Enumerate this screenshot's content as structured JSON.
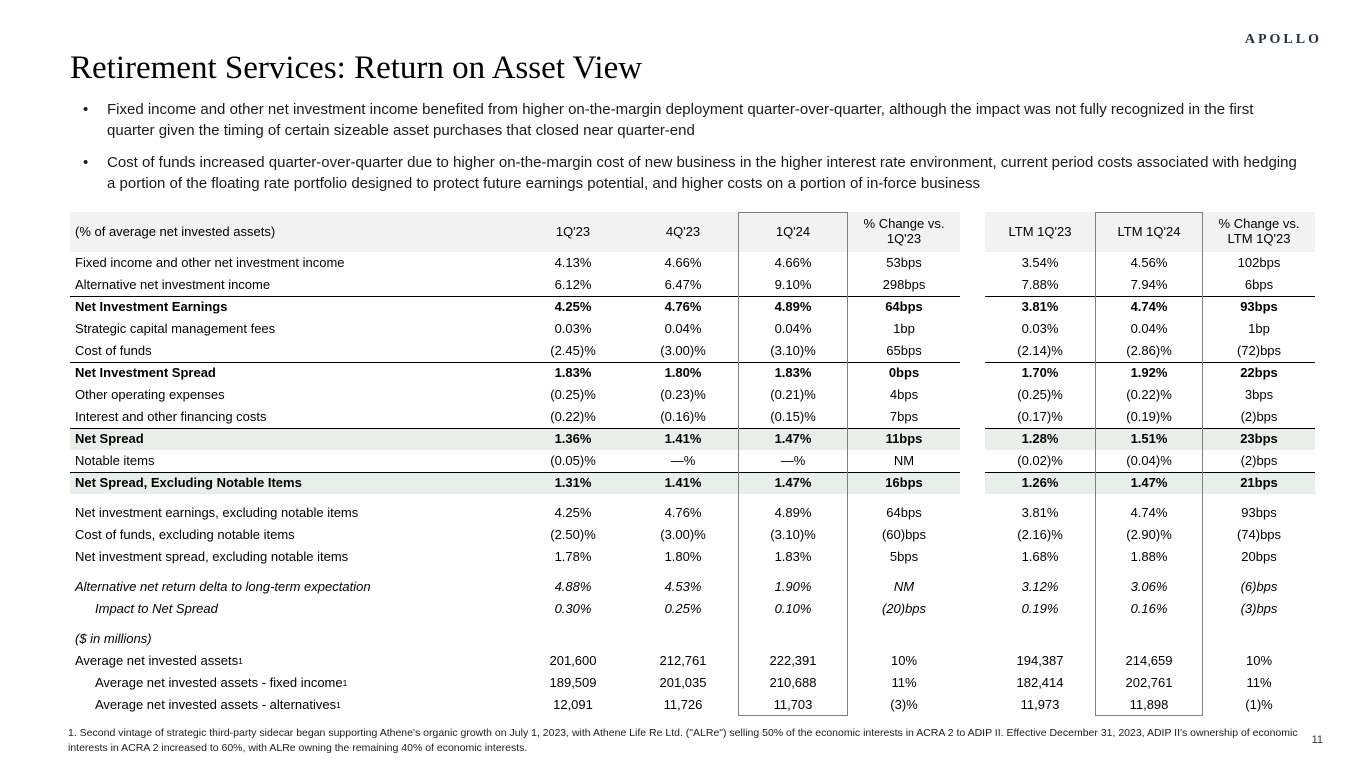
{
  "brand": {
    "logo": "APOLLO"
  },
  "page": {
    "title": "Retirement Services: Return on Asset View",
    "page_number": "11"
  },
  "bullets": [
    "Fixed income and other net investment income benefited from higher on-the-margin deployment quarter-over-quarter, although the impact was not fully recognized in the first quarter given the timing of certain sizeable asset purchases that closed near quarter-end",
    "Cost of funds increased quarter-over-quarter due to higher on-the-margin cost of new business in the higher interest rate environment, current period costs associated with hedging a portion of the floating rate portfolio designed to protect future earnings potential, and higher costs on a portion of in-force business"
  ],
  "table": {
    "label_header": "(% of average net invested assets)",
    "col_headers": [
      "1Q'23",
      "4Q'23",
      "1Q'24",
      "% Change vs.\n1Q'23",
      "LTM 1Q'23",
      "LTM 1Q'24",
      "% Change vs.\nLTM 1Q'23"
    ],
    "rows": [
      {
        "label": "Fixed income and other net investment income",
        "values": [
          "4.13%",
          "4.66%",
          "4.66%",
          "53bps",
          "3.54%",
          "4.56%",
          "102bps"
        ]
      },
      {
        "label": "Alternative net investment income",
        "values": [
          "6.12%",
          "6.47%",
          "9.10%",
          "298bps",
          "7.88%",
          "7.94%",
          "6bps"
        ]
      },
      {
        "label": "Net Investment Earnings",
        "emphasis": "bold",
        "border_top": true,
        "values": [
          "4.25%",
          "4.76%",
          "4.89%",
          "64bps",
          "3.81%",
          "4.74%",
          "93bps"
        ]
      },
      {
        "label": "Strategic capital management fees",
        "values": [
          "0.03%",
          "0.04%",
          "0.04%",
          "1bp",
          "0.03%",
          "0.04%",
          "1bp"
        ]
      },
      {
        "label": "Cost of funds",
        "values": [
          "(2.45)%",
          "(3.00)%",
          "(3.10)%",
          "65bps",
          "(2.14)%",
          "(2.86)%",
          "(72)bps"
        ]
      },
      {
        "label": "Net Investment Spread",
        "emphasis": "bold",
        "border_top": true,
        "values": [
          "1.83%",
          "1.80%",
          "1.83%",
          "0bps",
          "1.70%",
          "1.92%",
          "22bps"
        ]
      },
      {
        "label": "Other operating expenses",
        "values": [
          "(0.25)%",
          "(0.23)%",
          "(0.21)%",
          "4bps",
          "(0.25)%",
          "(0.22)%",
          "3bps"
        ]
      },
      {
        "label": "Interest and other financing costs",
        "values": [
          "(0.22)%",
          "(0.16)%",
          "(0.15)%",
          "7bps",
          "(0.17)%",
          "(0.19)%",
          "(2)bps"
        ]
      },
      {
        "label": "Net Spread",
        "emphasis": "bold",
        "border_top": true,
        "highlight": true,
        "values": [
          "1.36%",
          "1.41%",
          "1.47%",
          "11bps",
          "1.28%",
          "1.51%",
          "23bps"
        ]
      },
      {
        "label": "Notable items",
        "values": [
          "(0.05)%",
          "—%",
          "—%",
          "NM",
          "(0.02)%",
          "(0.04)%",
          "(2)bps"
        ]
      },
      {
        "label": "Net Spread, Excluding Notable Items",
        "emphasis": "bold",
        "border_top": true,
        "highlight": true,
        "values": [
          "1.31%",
          "1.41%",
          "1.47%",
          "16bps",
          "1.26%",
          "1.47%",
          "21bps"
        ]
      },
      {
        "spacer": true
      },
      {
        "label": "Net investment earnings, excluding notable items",
        "values": [
          "4.25%",
          "4.76%",
          "4.89%",
          "64bps",
          "3.81%",
          "4.74%",
          "93bps"
        ]
      },
      {
        "label": "Cost of funds, excluding notable items",
        "values": [
          "(2.50)%",
          "(3.00)%",
          "(3.10)%",
          "(60)bps",
          "(2.16)%",
          "(2.90)%",
          "(74)bps"
        ]
      },
      {
        "label": "Net investment spread, excluding notable items",
        "values": [
          "1.78%",
          "1.80%",
          "1.83%",
          "5bps",
          "1.68%",
          "1.88%",
          "20bps"
        ]
      },
      {
        "spacer": true
      },
      {
        "label": "Alternative net return delta to long-term expectation",
        "emphasis": "italic",
        "values": [
          "4.88%",
          "4.53%",
          "1.90%",
          "NM",
          "3.12%",
          "3.06%",
          "(6)bps"
        ]
      },
      {
        "label": "Impact to Net Spread",
        "emphasis": "italic",
        "indent": true,
        "values": [
          "0.30%",
          "0.25%",
          "0.10%",
          "(20)bps",
          "0.19%",
          "0.16%",
          "(3)bps"
        ]
      },
      {
        "spacer": true
      },
      {
        "label": "($ in millions)",
        "emphasis": "italic",
        "values": [
          "",
          "",
          "",
          "",
          "",
          "",
          ""
        ]
      },
      {
        "label": "Average net invested assets",
        "sup": "1",
        "values": [
          "201,600",
          "212,761",
          "222,391",
          "10%",
          "194,387",
          "214,659",
          "10%"
        ]
      },
      {
        "label": "Average net invested assets - fixed income",
        "sup": "1",
        "indent": true,
        "values": [
          "189,509",
          "201,035",
          "210,688",
          "11%",
          "182,414",
          "202,761",
          "11%"
        ]
      },
      {
        "label": "Average net invested assets - alternatives",
        "sup": "1",
        "indent": true,
        "values": [
          "12,091",
          "11,726",
          "11,703",
          "(3)%",
          "11,973",
          "11,898",
          "(1)%"
        ]
      }
    ]
  },
  "footnote": "1. Second vintage of strategic third-party sidecar began supporting Athene's organic growth on July 1, 2023, with Athene Life Re Ltd. (\"ALRe\") selling 50% of the economic interests in ACRA 2 to ADIP II. Effective December 31, 2023, ADIP II's ownership of economic interests in ACRA 2 increased to 60%, with ALRe owning the remaining 40% of economic interests.",
  "colors": {
    "highlight_row": "#e6efe8",
    "header_bg": "#f2f2f2",
    "box_border": "#7f7f7f"
  }
}
